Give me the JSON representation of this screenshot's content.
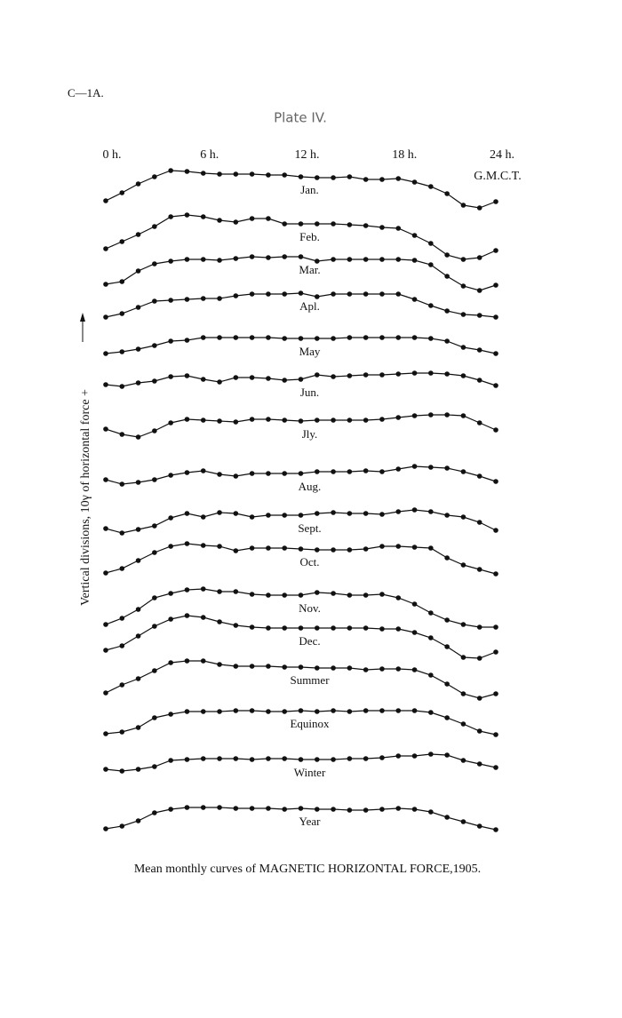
{
  "header": "C—1A.",
  "plate": "Plate IV.",
  "chart_data": {
    "type": "line",
    "title": "Mean monthly curves of MAGNETIC HORIZONTAL FORCE,1905.",
    "y_label": "Vertical divisions, 10γ of horizontal force +",
    "x_note": "G.M.C.T.",
    "x": [
      0,
      1,
      2,
      3,
      4,
      5,
      6,
      7,
      8,
      9,
      10,
      11,
      12,
      13,
      14,
      15,
      16,
      17,
      18,
      19,
      20,
      21,
      22,
      23,
      24
    ],
    "xlim": [
      0,
      24
    ],
    "xticks": [
      {
        "value": 0,
        "label": "0 h."
      },
      {
        "value": 6,
        "label": "6 h."
      },
      {
        "value": 12,
        "label": "12 h."
      },
      {
        "value": 18,
        "label": "18 h."
      },
      {
        "value": 24,
        "label": "24 h."
      }
    ],
    "ylim": [
      50,
      820
    ],
    "series": [
      {
        "name": "Jan.",
        "color": "#111",
        "values": [
          774,
          783,
          793,
          801,
          808,
          807,
          805,
          804,
          804,
          804,
          803,
          803,
          801,
          800,
          800,
          801,
          798,
          798,
          799,
          795,
          790,
          782,
          769,
          766,
          773
        ]
      },
      {
        "name": "Feb.",
        "color": "#111",
        "values": [
          720,
          728,
          736,
          745,
          756,
          758,
          756,
          752,
          750,
          754,
          754,
          748,
          748,
          748,
          748,
          747,
          746,
          744,
          743,
          735,
          726,
          713,
          708,
          710,
          718
        ]
      },
      {
        "name": "Mar.",
        "color": "#111",
        "values": [
          680,
          683,
          695,
          703,
          706,
          708,
          708,
          707,
          709,
          711,
          710,
          711,
          711,
          706,
          708,
          708,
          708,
          708,
          708,
          707,
          702,
          689,
          678,
          673,
          679
        ]
      },
      {
        "name": "Apl.",
        "color": "#111",
        "values": [
          643,
          647,
          654,
          661,
          662,
          663,
          664,
          664,
          667,
          669,
          669,
          669,
          670,
          666,
          669,
          669,
          669,
          669,
          669,
          663,
          656,
          650,
          646,
          645,
          643
        ]
      },
      {
        "name": "May",
        "color": "#111",
        "values": [
          602,
          604,
          607,
          611,
          616,
          617,
          620,
          620,
          620,
          620,
          620,
          619,
          619,
          619,
          619,
          620,
          620,
          620,
          620,
          620,
          619,
          616,
          609,
          606,
          602
        ]
      },
      {
        "name": "Jun.",
        "color": "#111",
        "values": [
          567,
          565,
          569,
          571,
          576,
          577,
          573,
          570,
          575,
          575,
          574,
          572,
          573,
          578,
          576,
          577,
          578,
          578,
          579,
          580,
          580,
          579,
          577,
          572,
          566
        ]
      },
      {
        "name": "Jly.",
        "color": "#111",
        "values": [
          517,
          511,
          508,
          515,
          524,
          528,
          527,
          526,
          525,
          528,
          528,
          527,
          526,
          527,
          527,
          527,
          527,
          528,
          530,
          532,
          533,
          533,
          532,
          524,
          516
        ]
      },
      {
        "name": "Aug.",
        "color": "#111",
        "values": [
          460,
          455,
          457,
          460,
          465,
          468,
          470,
          466,
          464,
          467,
          467,
          467,
          467,
          469,
          469,
          469,
          470,
          469,
          472,
          475,
          474,
          473,
          469,
          464,
          458
        ]
      },
      {
        "name": "Sept.",
        "color": "#111",
        "values": [
          405,
          400,
          404,
          408,
          417,
          422,
          418,
          423,
          422,
          418,
          420,
          420,
          420,
          422,
          423,
          422,
          422,
          421,
          424,
          426,
          424,
          420,
          418,
          412,
          403
        ]
      },
      {
        "name": "Oct.",
        "color": "#111",
        "values": [
          355,
          360,
          369,
          378,
          385,
          388,
          386,
          385,
          380,
          383,
          383,
          383,
          382,
          381,
          381,
          381,
          382,
          385,
          385,
          384,
          383,
          372,
          364,
          359,
          354
        ]
      },
      {
        "name": "Nov.",
        "color": "#111",
        "values": [
          297,
          304,
          314,
          327,
          332,
          336,
          337,
          334,
          334,
          331,
          330,
          330,
          330,
          333,
          332,
          330,
          330,
          331,
          327,
          320,
          310,
          302,
          297,
          294,
          294
        ]
      },
      {
        "name": "Dec.",
        "color": "#111",
        "values": [
          268,
          273,
          284,
          295,
          303,
          307,
          305,
          300,
          296,
          294,
          293,
          293,
          293,
          293,
          293,
          293,
          293,
          292,
          292,
          288,
          282,
          272,
          260,
          259,
          266
        ]
      },
      {
        "name": "Summer",
        "color": "#111",
        "values": [
          220,
          229,
          236,
          245,
          254,
          256,
          256,
          252,
          250,
          250,
          250,
          249,
          249,
          248,
          248,
          248,
          246,
          247,
          247,
          246,
          240,
          230,
          219,
          214,
          219
        ]
      },
      {
        "name": "Equinox",
        "color": "#111",
        "values": [
          174,
          176,
          181,
          192,
          196,
          199,
          199,
          199,
          200,
          200,
          199,
          199,
          200,
          199,
          200,
          199,
          200,
          200,
          200,
          200,
          198,
          192,
          185,
          177,
          173
        ]
      },
      {
        "name": "Winter",
        "color": "#111",
        "values": [
          134,
          132,
          134,
          137,
          144,
          145,
          146,
          146,
          146,
          145,
          146,
          146,
          145,
          145,
          145,
          146,
          146,
          147,
          149,
          149,
          151,
          150,
          144,
          140,
          136
        ]
      },
      {
        "name": "Year",
        "color": "#111",
        "values": [
          67,
          70,
          76,
          85,
          89,
          91,
          91,
          91,
          90,
          90,
          90,
          89,
          90,
          89,
          89,
          88,
          88,
          89,
          90,
          89,
          86,
          80,
          75,
          70,
          66
        ]
      }
    ]
  }
}
